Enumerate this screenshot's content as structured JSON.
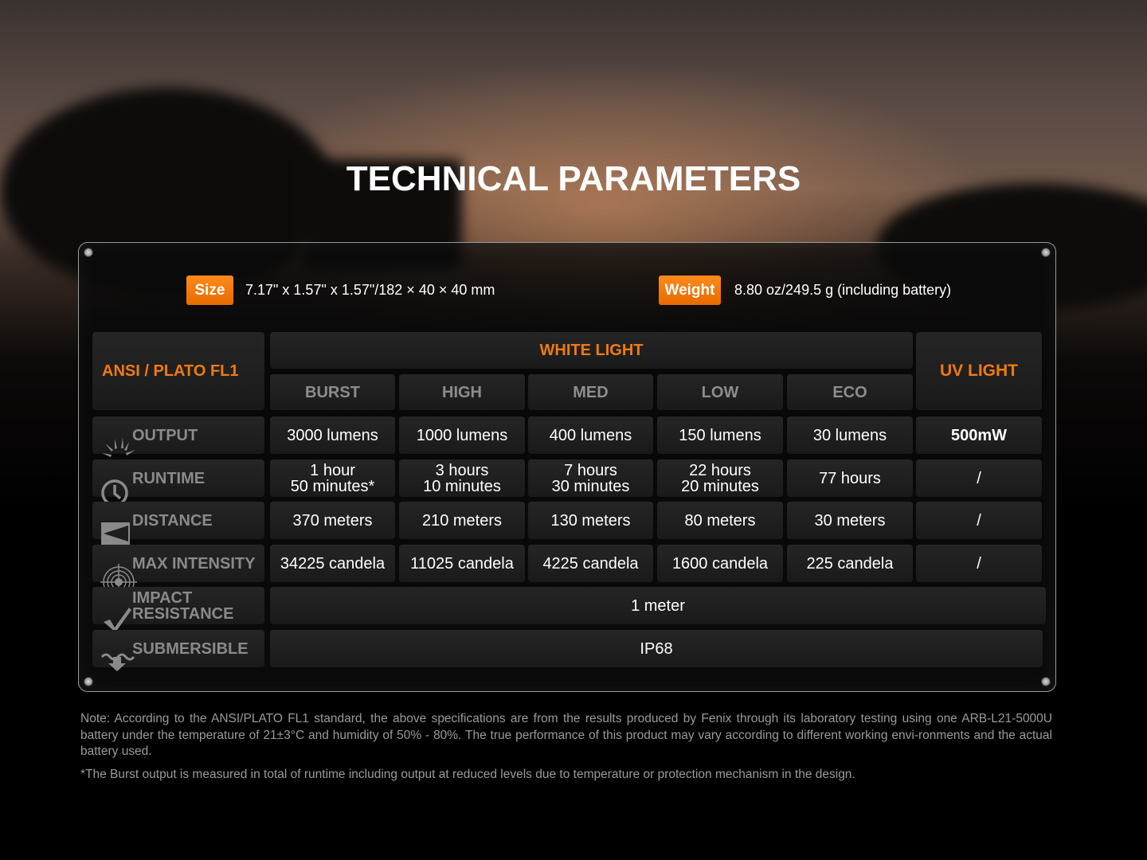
{
  "title": "TECHNICAL PARAMETERS",
  "size": {
    "label": "Size",
    "value": "7.17\" x 1.57\" x 1.57\"/182 × 40 × 40 mm"
  },
  "weight": {
    "label": "Weight",
    "value": "8.80 oz/249.5 g (including battery)"
  },
  "table": {
    "corner": "ANSI / PLATO FL1",
    "white_light": "WHITE LIGHT",
    "uv_light": "UV LIGHT",
    "modes": [
      "BURST",
      "HIGH",
      "MED",
      "LOW",
      "ECO"
    ],
    "rows": [
      {
        "label": "OUTPUT",
        "icon": "sun-rays-icon",
        "values": [
          "3000 lumens",
          "1000 lumens",
          "400 lumens",
          "150 lumens",
          "30 lumens"
        ],
        "uv": "500mW"
      },
      {
        "label": "RUNTIME",
        "icon": "clock-icon",
        "values": [
          "1 hour\n50 minutes*",
          "3 hours\n10 minutes",
          "7 hours\n30 minutes",
          "22 hours\n20 minutes",
          "77 hours"
        ],
        "uv": "/"
      },
      {
        "label": "DISTANCE",
        "icon": "beam-distance-icon",
        "values": [
          "370 meters",
          "210 meters",
          "130 meters",
          "80 meters",
          "30 meters"
        ],
        "uv": "/"
      },
      {
        "label": "MAX INTENSITY",
        "icon": "target-icon",
        "values": [
          "34225 candela",
          "11025 candela",
          "4225 candela",
          "1600 candela",
          "225 candela"
        ],
        "uv": "/"
      }
    ],
    "impact": {
      "label": "IMPACT\nRESISTANCE",
      "icon": "impact-check-icon",
      "value": "1 meter"
    },
    "submersible": {
      "label": "SUBMERSIBLE",
      "icon": "water-arrow-icon",
      "value": "IP68"
    }
  },
  "notes": [
    "Note: According to the ANSI/PLATO FL1 standard, the above specifications are from the results produced by Fenix through its laboratory testing using one ARB-L21-5000U battery under the temperature of 21±3°C and humidity of 50% - 80%. The true performance of this product may vary according to different working envi-ronments and the actual battery used.",
    "*The Burst output is measured in total of runtime including output at reduced levels due to temperature or protection mechanism in the design."
  ],
  "colors": {
    "accent": "#f07a10",
    "badge": "#ff7f0f"
  }
}
